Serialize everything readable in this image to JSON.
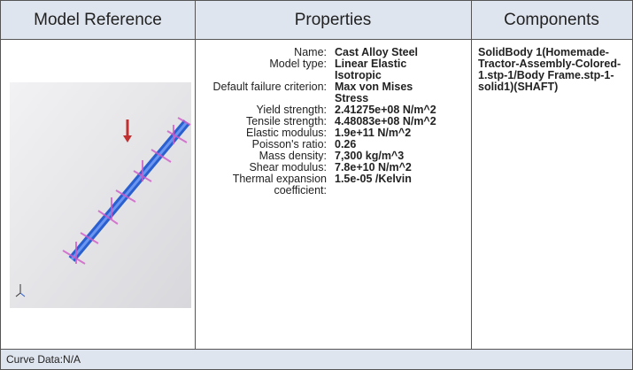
{
  "header": {
    "columns": [
      "Model Reference",
      "Properties",
      "Components"
    ]
  },
  "properties": [
    {
      "name": "Name:",
      "value": "Cast Alloy Steel"
    },
    {
      "name": "Model type:",
      "value": "Linear Elastic Isotropic"
    },
    {
      "name": "Default failure criterion:",
      "value": "Max von Mises Stress"
    },
    {
      "name": "Yield strength:",
      "value": "2.41275e+08 N/m^2"
    },
    {
      "name": "Tensile strength:",
      "value": "4.48083e+08 N/m^2"
    },
    {
      "name": "Elastic modulus:",
      "value": "1.9e+11 N/m^2"
    },
    {
      "name": "Poisson's ratio:",
      "value": "0.26"
    },
    {
      "name": "Mass density:",
      "value": "7,300 kg/m^3"
    },
    {
      "name": "Shear modulus:",
      "value": "7.8e+10 N/m^2"
    },
    {
      "name": "Thermal expansion coefficient:",
      "value": "1.5e-05 /Kelvin"
    }
  ],
  "components": "SolidBody 1(Homemade-Tractor-Assembly-Colored-1.stp-1/Body Frame.stp-1-solid1)(SHAFT)",
  "footer": "Curve Data:N/A"
}
